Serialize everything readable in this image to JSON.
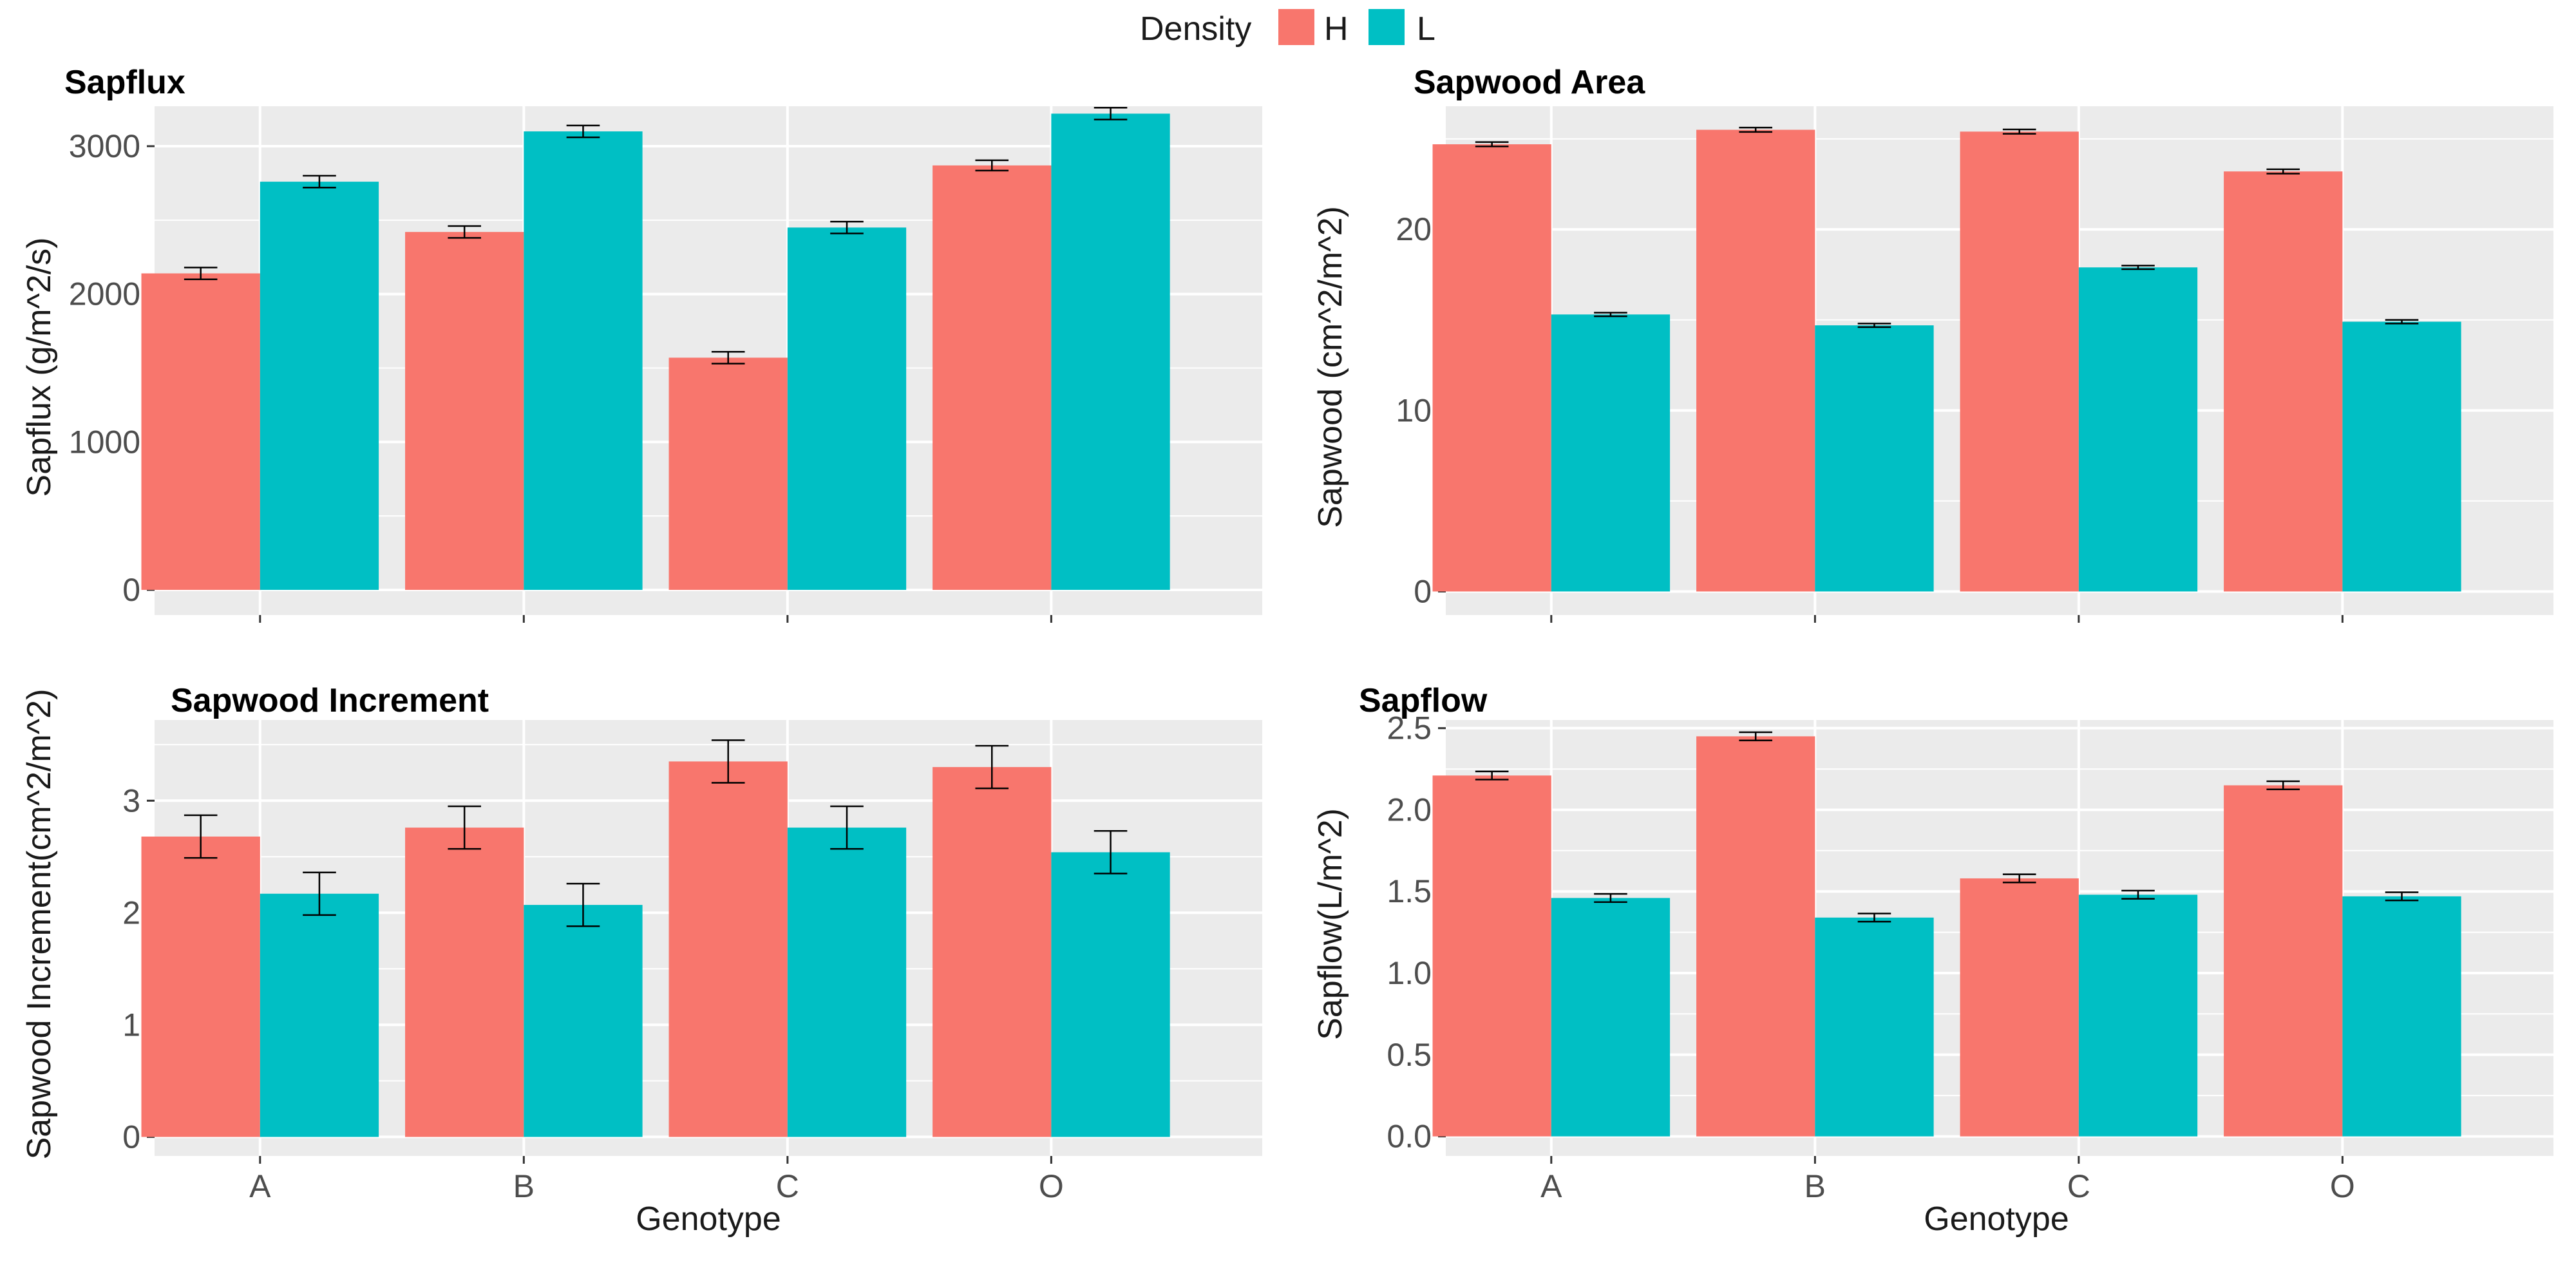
{
  "legend": {
    "title": "Density",
    "items": [
      {
        "label": "H",
        "color": "#F8766D"
      },
      {
        "label": "L",
        "color": "#00BFC4"
      }
    ]
  },
  "colors": {
    "panel_bg": "#EBEBEB",
    "grid": "#FFFFFF",
    "error_bar": "#000000",
    "tick": "#333333"
  },
  "chart_data": [
    {
      "type": "bar",
      "title": "Sapflux",
      "xlabel": "",
      "ylabel": "Sapflux (g/m^2/s)",
      "categories": [
        "A",
        "B",
        "C",
        "O"
      ],
      "ylim": [
        -170,
        3270
      ],
      "yticks": [
        0,
        1000,
        2000,
        3000
      ],
      "show_x_tick_labels": false,
      "series": [
        {
          "name": "H",
          "values": [
            2140,
            2420,
            1570,
            2870
          ],
          "errors": [
            40,
            40,
            40,
            35
          ]
        },
        {
          "name": "L",
          "values": [
            2760,
            3100,
            2450,
            3220
          ],
          "errors": [
            40,
            40,
            40,
            40
          ]
        }
      ]
    },
    {
      "type": "bar",
      "title": "Sapwood Area",
      "xlabel": "",
      "ylabel": "Sapwood (cm^2/m^2)",
      "categories": [
        "A",
        "B",
        "C",
        "O"
      ],
      "ylim": [
        -1.3,
        26.8
      ],
      "yticks": [
        0,
        10,
        20
      ],
      "show_x_tick_labels": false,
      "series": [
        {
          "name": "H",
          "values": [
            24.7,
            25.5,
            25.4,
            23.2
          ],
          "errors": [
            0.12,
            0.12,
            0.12,
            0.12
          ]
        },
        {
          "name": "L",
          "values": [
            15.3,
            14.7,
            17.9,
            14.9
          ],
          "errors": [
            0.1,
            0.1,
            0.1,
            0.1
          ]
        }
      ]
    },
    {
      "type": "bar",
      "title": "Sapwood Increment",
      "xlabel": "Genotype",
      "ylabel": "Sapwood Increment(cm^2/m^2)",
      "categories": [
        "A",
        "B",
        "C",
        "O"
      ],
      "ylim": [
        -0.17,
        3.72
      ],
      "yticks": [
        0,
        1,
        2,
        3
      ],
      "show_x_tick_labels": true,
      "series": [
        {
          "name": "H",
          "values": [
            2.68,
            2.76,
            3.35,
            3.3
          ],
          "errors": [
            0.19,
            0.19,
            0.19,
            0.19
          ]
        },
        {
          "name": "L",
          "values": [
            2.17,
            2.07,
            2.76,
            2.54
          ],
          "errors": [
            0.19,
            0.19,
            0.19,
            0.19
          ]
        }
      ]
    },
    {
      "type": "bar",
      "title": "Sapflow",
      "xlabel": "Genotype",
      "ylabel": "Sapflow(L/m^2)",
      "categories": [
        "A",
        "B",
        "C",
        "O"
      ],
      "ylim": [
        -0.12,
        2.55
      ],
      "yticks": [
        0.0,
        0.5,
        1.0,
        1.5,
        2.0,
        2.5
      ],
      "ytick_labels": [
        "0.0",
        "0.5",
        "1.0",
        "1.5",
        "2.0",
        "2.5"
      ],
      "show_x_tick_labels": true,
      "series": [
        {
          "name": "H",
          "values": [
            2.21,
            2.45,
            1.58,
            2.15
          ],
          "errors": [
            0.025,
            0.025,
            0.025,
            0.025
          ]
        },
        {
          "name": "L",
          "values": [
            1.46,
            1.34,
            1.48,
            1.47
          ],
          "errors": [
            0.025,
            0.025,
            0.025,
            0.025
          ]
        }
      ]
    }
  ]
}
